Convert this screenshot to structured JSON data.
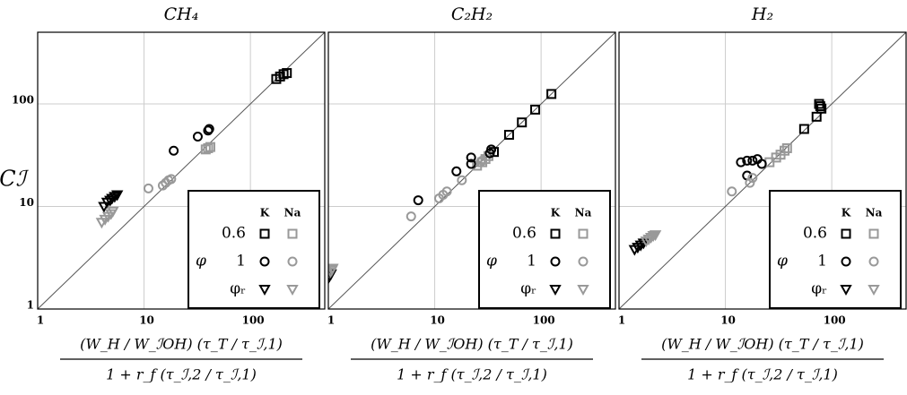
{
  "chart_data": [
    {
      "type": "scatter",
      "title": "CH₄",
      "y_label": "Cℐ",
      "x_label_numerator": "(W_H / W_ℐOH) (τ_T / τ_ℐ,1)",
      "x_label_denominator": "1 + r_f (τ_ℐ,2 / τ_ℐ,1)",
      "xlim": [
        1,
        500
      ],
      "ylim": [
        1,
        500
      ],
      "xticks": [
        1,
        10,
        100
      ],
      "yticks": [
        1,
        10,
        100
      ],
      "log_x": true,
      "log_y": true,
      "grid": true,
      "diagonal": true,
      "legend": {
        "title": "φ",
        "columns": [
          "K",
          "Na"
        ],
        "rows": [
          "0.6",
          "1",
          "φᵣ"
        ],
        "position": "lower right"
      },
      "series": [
        {
          "color": "#000000",
          "marker": "square",
          "x": [
            175,
            190,
            205,
            220
          ],
          "y": [
            175,
            185,
            195,
            200
          ]
        },
        {
          "color": "#999999",
          "marker": "square",
          "x": [
            38,
            40,
            42
          ],
          "y": [
            36,
            37,
            38
          ]
        },
        {
          "color": "#000000",
          "marker": "circle",
          "x": [
            19,
            32,
            40,
            41
          ],
          "y": [
            35,
            48,
            55,
            57
          ]
        },
        {
          "color": "#999999",
          "marker": "circle",
          "x": [
            11,
            15,
            16,
            17,
            18
          ],
          "y": [
            15,
            16,
            17,
            18,
            18.5
          ]
        },
        {
          "color": "#000000",
          "marker": "triangle",
          "x": [
            4.2,
            4.5,
            4.8,
            5,
            5.3,
            5.6
          ],
          "y": [
            10,
            11,
            11.5,
            12,
            12.5,
            13
          ]
        },
        {
          "color": "#999999",
          "marker": "triangle",
          "x": [
            4,
            4.3,
            4.6,
            4.9,
            5.1
          ],
          "y": [
            7,
            7.5,
            8,
            8.5,
            9
          ]
        }
      ]
    },
    {
      "type": "scatter",
      "title": "C₂H₂",
      "x_label_numerator": "(W_H / W_ℐOH) (τ_T / τ_ℐ,1)",
      "x_label_denominator": "1 + r_f (τ_ℐ,2 / τ_ℐ,1)",
      "xlim": [
        1,
        500
      ],
      "ylim": [
        1,
        500
      ],
      "xticks": [
        1,
        10,
        100
      ],
      "yticks": [
        1,
        10,
        100
      ],
      "log_x": true,
      "log_y": true,
      "grid": true,
      "diagonal": true,
      "legend": {
        "title": "φ",
        "columns": [
          "K",
          "Na"
        ],
        "rows": [
          "0.6",
          "1",
          "φᵣ"
        ],
        "position": "lower right"
      },
      "series": [
        {
          "color": "#000000",
          "marker": "square",
          "x": [
            125,
            88,
            66,
            50,
            36
          ],
          "y": [
            125,
            88,
            66,
            50,
            34
          ]
        },
        {
          "color": "#999999",
          "marker": "square",
          "x": [
            25,
            28,
            30,
            32
          ],
          "y": [
            25,
            27,
            29,
            31
          ]
        },
        {
          "color": "#000000",
          "marker": "circle",
          "x": [
            7,
            16,
            22,
            22,
            33,
            34
          ],
          "y": [
            11.5,
            22,
            30,
            26,
            33,
            36
          ]
        },
        {
          "color": "#999999",
          "marker": "circle",
          "x": [
            6,
            11,
            12,
            13,
            18,
            27,
            28
          ],
          "y": [
            8,
            12,
            13,
            14,
            18,
            27,
            28
          ]
        },
        {
          "color": "#000000",
          "marker": "triangle",
          "x": [
            1,
            1.03,
            1.06
          ],
          "y": [
            2,
            2.1,
            2.2
          ]
        },
        {
          "color": "#999999",
          "marker": "triangle",
          "x": [
            1.05,
            1.08,
            1.1
          ],
          "y": [
            2.3,
            2.4,
            2.5
          ]
        }
      ]
    },
    {
      "type": "scatter",
      "title": "H₂",
      "x_label_numerator": "(W_H / W_ℐOH) (τ_T / τ_ℐ,1)",
      "x_label_denominator": "1 + r_f (τ_ℐ,2 / τ_ℐ,1)",
      "xlim": [
        1,
        500
      ],
      "ylim": [
        1,
        500
      ],
      "xticks": [
        1,
        10,
        100
      ],
      "yticks": [
        1,
        10,
        100
      ],
      "log_x": true,
      "log_y": true,
      "grid": true,
      "diagonal": true,
      "legend": {
        "title": "φ",
        "columns": [
          "K",
          "Na"
        ],
        "rows": [
          "0.6",
          "1",
          "φᵣ"
        ],
        "position": "lower right"
      },
      "series": [
        {
          "color": "#000000",
          "marker": "square",
          "x": [
            76,
            78,
            80,
            72,
            55
          ],
          "y": [
            100,
            95,
            90,
            75,
            57
          ]
        },
        {
          "color": "#999999",
          "marker": "square",
          "x": [
            26,
            30,
            33,
            36,
            38
          ],
          "y": [
            27,
            30,
            32,
            35,
            37
          ]
        },
        {
          "color": "#000000",
          "marker": "circle",
          "x": [
            14,
            16,
            18,
            20,
            22,
            16
          ],
          "y": [
            27,
            28,
            28,
            29,
            26,
            20
          ]
        },
        {
          "color": "#999999",
          "marker": "circle",
          "x": [
            11.5,
            17,
            18
          ],
          "y": [
            14,
            17,
            19
          ]
        },
        {
          "color": "#000000",
          "marker": "triangle",
          "x": [
            1.4,
            1.5,
            1.6,
            1.7
          ],
          "y": [
            3.8,
            4,
            4.2,
            4.4
          ]
        },
        {
          "color": "#999999",
          "marker": "triangle",
          "x": [
            1.8,
            1.9,
            2,
            2.1,
            2.2
          ],
          "y": [
            4.6,
            4.8,
            5,
            5.2,
            5.3
          ]
        }
      ]
    }
  ]
}
